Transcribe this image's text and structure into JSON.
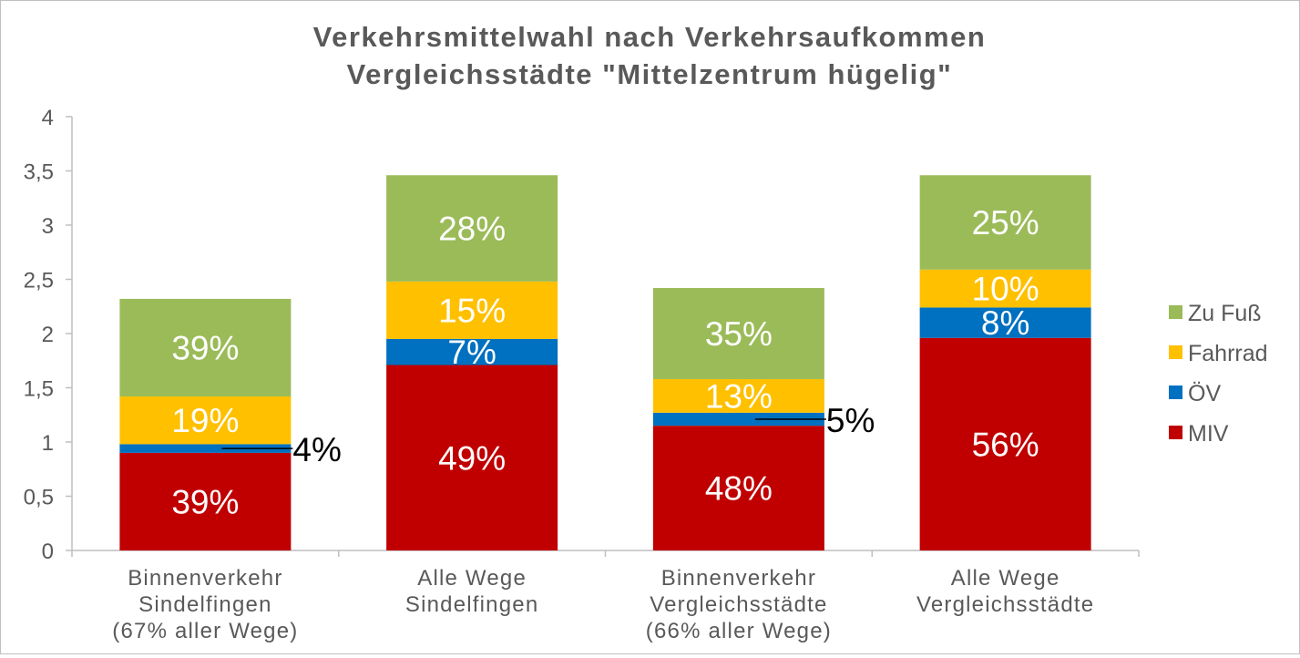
{
  "chart_data": {
    "type": "bar",
    "stacked": true,
    "title": "Verkehrsmittelwahl nach Verkehrsaufkommen",
    "subtitle": "Vergleichsstädte \"Mittelzentrum hügelig\"",
    "xlabel": "",
    "ylabel": "",
    "ylim": [
      0,
      4
    ],
    "yticks": [
      {
        "value": 0,
        "label": "0"
      },
      {
        "value": 0.5,
        "label": "0,5"
      },
      {
        "value": 1,
        "label": "1"
      },
      {
        "value": 1.5,
        "label": "1,5"
      },
      {
        "value": 2,
        "label": "2"
      },
      {
        "value": 2.5,
        "label": "2,5"
      },
      {
        "value": 3,
        "label": "3"
      },
      {
        "value": 3.5,
        "label": "3,5"
      },
      {
        "value": 4,
        "label": "4"
      }
    ],
    "categories": [
      [
        "Binnenverkehr",
        "Sindelfingen",
        "(67% aller Wege)"
      ],
      [
        "Alle Wege",
        "Sindelfingen"
      ],
      [
        "Binnenverkehr",
        "Vergleichsstädte",
        "(66% aller Wege)"
      ],
      [
        "Alle Wege",
        "Vergleichsstädte"
      ]
    ],
    "series": [
      {
        "name": "MIV",
        "color": "#c00000",
        "values": [
          0.9,
          1.71,
          1.15,
          1.96
        ],
        "labels": [
          "39%",
          "49%",
          "48%",
          "56%"
        ]
      },
      {
        "name": "ÖV",
        "color": "#0070c0",
        "values": [
          0.08,
          0.24,
          0.12,
          0.28
        ],
        "labels": [
          "4%",
          "7%",
          "5%",
          "8%"
        ]
      },
      {
        "name": "Fahrrad",
        "color": "#ffc000",
        "values": [
          0.44,
          0.53,
          0.31,
          0.35
        ],
        "labels": [
          "19%",
          "15%",
          "13%",
          "10%"
        ]
      },
      {
        "name": "Zu Fuß",
        "color": "#9bbb59",
        "values": [
          0.9,
          0.98,
          0.84,
          0.87
        ],
        "labels": [
          "39%",
          "28%",
          "35%",
          "25%"
        ]
      }
    ],
    "legend_position": "right",
    "grid": false
  }
}
